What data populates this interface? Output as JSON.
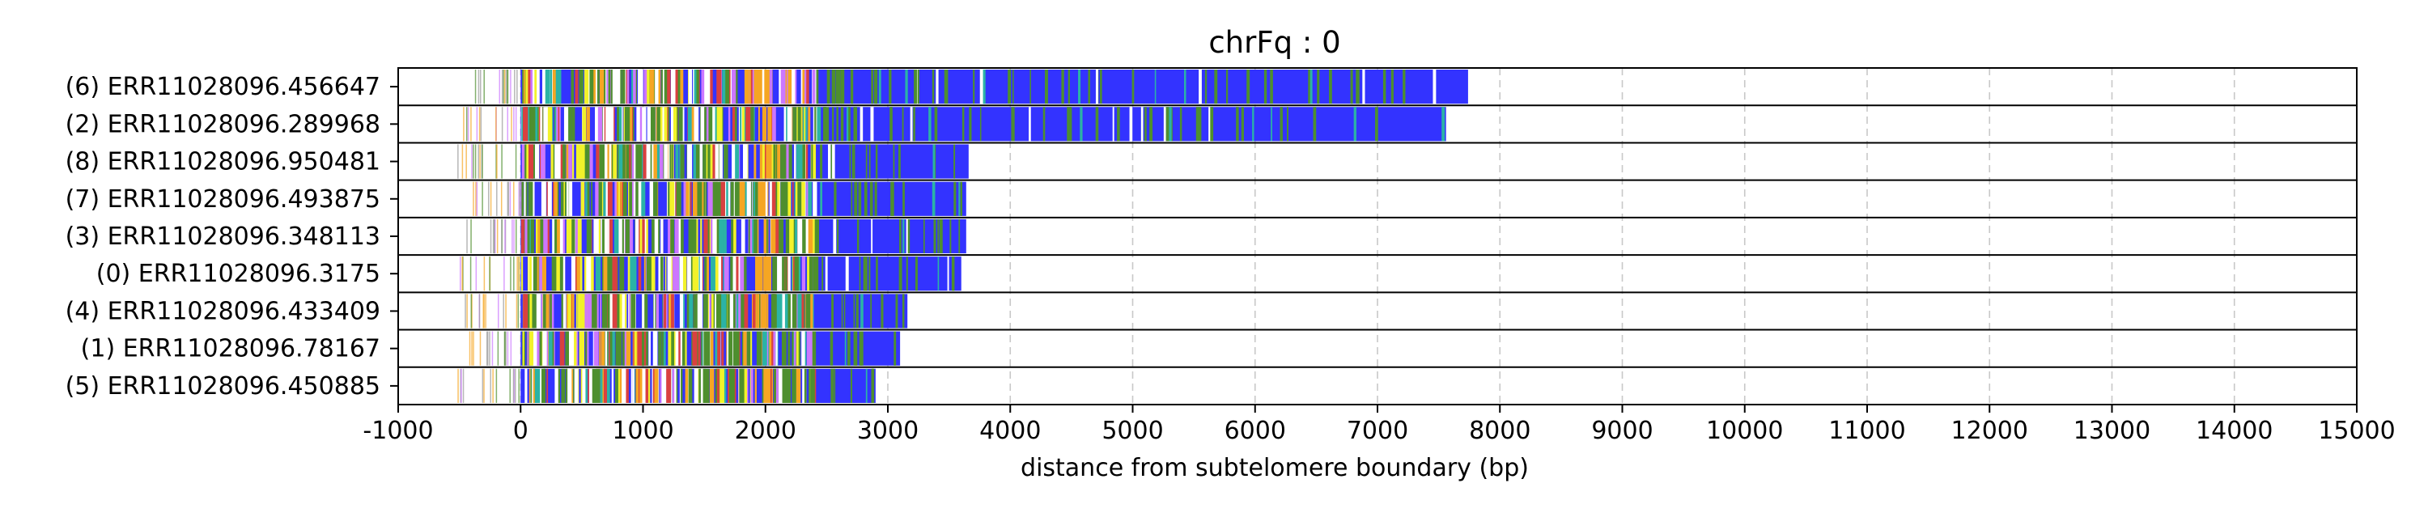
{
  "chart_data": {
    "type": "bar",
    "title": "chrFq : 0",
    "xlabel": "distance from subtelomere boundary (bp)",
    "ylabel": "",
    "xlim": [
      -1000,
      15000
    ],
    "xticks": [
      "-1000",
      "0",
      "1000",
      "2000",
      "3000",
      "4000",
      "5000",
      "6000",
      "7000",
      "8000",
      "9000",
      "10000",
      "11000",
      "12000",
      "13000",
      "14000",
      "15000"
    ],
    "grid": "vertical dashed",
    "colors": {
      "repeat": "#3333ff",
      "green": "#4e8f2e",
      "yellow": "#f2f22a",
      "orange": "#f5a623",
      "violet": "#cc77ff",
      "teal": "#2bb3a6",
      "red": "#d94040",
      "light": "#ffffff"
    },
    "reads": [
      {
        "label": "(6) ERR11028096.456647",
        "start": -420,
        "end": 7740
      },
      {
        "label": "(2) ERR11028096.289968",
        "start": -500,
        "end": 7560
      },
      {
        "label": "(8) ERR11028096.950481",
        "start": -520,
        "end": 3660
      },
      {
        "label": "(7) ERR11028096.493875",
        "start": -440,
        "end": 3640
      },
      {
        "label": "(3) ERR11028096.348113",
        "start": -450,
        "end": 3640
      },
      {
        "label": "(0) ERR11028096.3175",
        "start": -500,
        "end": 3600
      },
      {
        "label": "(4) ERR11028096.433409",
        "start": -480,
        "end": 3160
      },
      {
        "label": "(1) ERR11028096.78167",
        "start": -460,
        "end": 3100
      },
      {
        "label": "(5) ERR11028096.450885",
        "start": -520,
        "end": 2900
      }
    ]
  }
}
